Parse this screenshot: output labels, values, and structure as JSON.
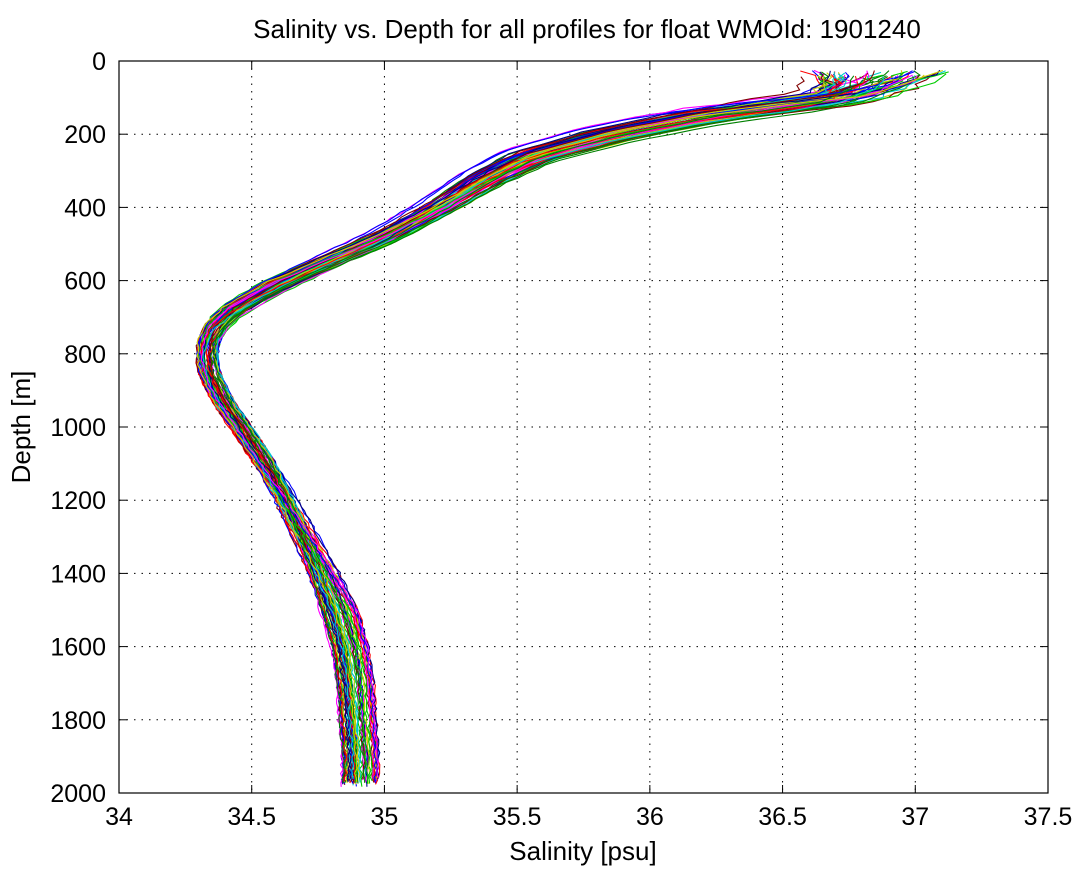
{
  "chart_data": {
    "type": "line",
    "title": "Salinity vs. Depth for all profiles for float WMOId: 1901240",
    "xlabel": "Salinity [psu]",
    "ylabel": "Depth [m]",
    "xlim": [
      34,
      37.5
    ],
    "ylim": [
      0,
      2000
    ],
    "y_reversed": true,
    "grid": "dotted",
    "x_ticks": [
      "34",
      "34.5",
      "35",
      "35.5",
      "36",
      "36.5",
      "37",
      "37.5"
    ],
    "y_ticks": [
      "0",
      "200",
      "400",
      "600",
      "800",
      "1000",
      "1200",
      "1400",
      "1600",
      "1800",
      "2000"
    ],
    "series_colors": [
      "#ff0000",
      "#00cc00",
      "#0000ff",
      "#00cccc",
      "#ff00ff",
      "#cccc00",
      "#008000",
      "#000080",
      "#800000"
    ],
    "mean_profile": {
      "depth": [
        30,
        60,
        100,
        150,
        200,
        260,
        320,
        400,
        480,
        560,
        620,
        680,
        720,
        760,
        800,
        850,
        900,
        950,
        1000,
        1100,
        1200,
        1300,
        1400,
        1500,
        1600,
        1700,
        1800,
        1900,
        1980
      ],
      "salinity": [
        36.85,
        36.82,
        36.7,
        36.2,
        35.85,
        35.55,
        35.38,
        35.2,
        35.0,
        34.75,
        34.57,
        34.43,
        34.37,
        34.34,
        34.33,
        34.34,
        34.37,
        34.41,
        34.46,
        34.55,
        34.63,
        34.7,
        34.77,
        34.83,
        34.87,
        34.89,
        34.9,
        34.91,
        34.91
      ]
    },
    "profile_count": 70
  }
}
